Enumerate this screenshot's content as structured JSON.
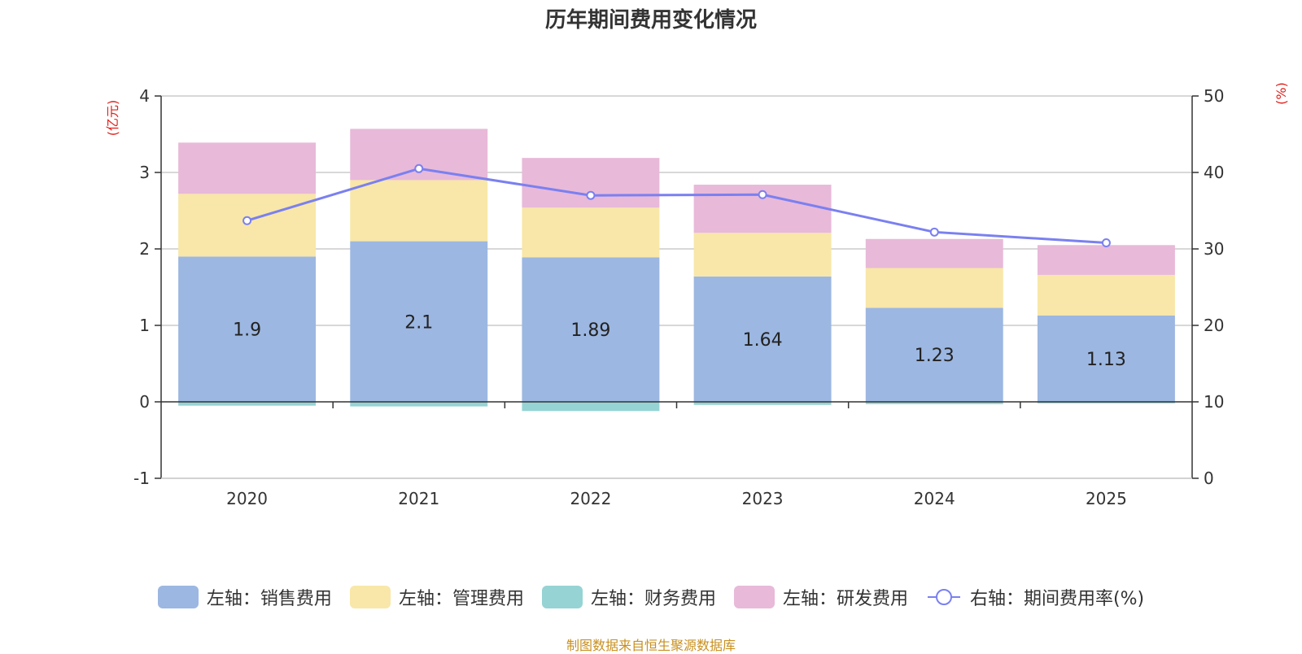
{
  "chart_data": {
    "type": "bar",
    "stacked": true,
    "title": "历年期间费用变化情况",
    "categories": [
      "2020",
      "2021",
      "2022",
      "2023",
      "2024",
      "2025"
    ],
    "series": [
      {
        "name": "左轴：销售费用",
        "axis": "left",
        "color": "#9cb7e1",
        "values": [
          1.9,
          2.1,
          1.89,
          1.64,
          1.23,
          1.13
        ],
        "labels": [
          "1.9",
          "2.1",
          "1.89",
          "1.64",
          "1.23",
          "1.13"
        ]
      },
      {
        "name": "左轴：管理费用",
        "axis": "left",
        "color": "#f8e7a8",
        "values": [
          0.82,
          0.8,
          0.65,
          0.57,
          0.52,
          0.53
        ]
      },
      {
        "name": "左轴：财务费用",
        "axis": "left",
        "color": "#96d3d4",
        "values": [
          -0.05,
          -0.06,
          -0.12,
          -0.04,
          -0.03,
          -0.02
        ]
      },
      {
        "name": "左轴：研发费用",
        "axis": "left",
        "color": "#e8b9d9",
        "values": [
          0.67,
          0.67,
          0.65,
          0.63,
          0.38,
          0.39
        ]
      },
      {
        "name": "右轴：期间费用率(%)",
        "axis": "right",
        "type": "line",
        "color": "#7a80f0",
        "values": [
          33.7,
          40.5,
          37,
          37.1,
          32.2,
          30.8
        ]
      }
    ],
    "left_axis": {
      "label": "(亿元)",
      "ylim": [
        -1,
        4
      ],
      "ticks": [
        "-1",
        "0",
        "1",
        "2",
        "3",
        "4"
      ]
    },
    "right_axis": {
      "label": "(%)",
      "ylim": [
        0,
        50
      ],
      "ticks": [
        "0",
        "10",
        "20",
        "30",
        "40",
        "50"
      ]
    },
    "grid": true,
    "legend_position": "bottom"
  },
  "source_note": "制图数据来自恒生聚源数据库"
}
